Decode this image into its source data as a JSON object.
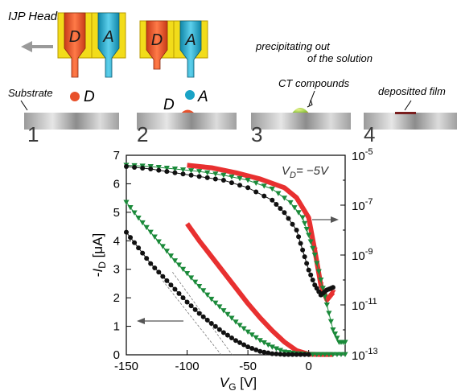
{
  "figure": {
    "labels": {
      "ijp_heads": "IJP Heads",
      "head_d": "D",
      "head_a": "A",
      "substrate": "Substrate",
      "drop_d": "D",
      "drop_a": "A",
      "precipitating_line1": "precipitating out",
      "precipitating_line2": "of the solution",
      "ct_compounds": "CT compounds",
      "deposited_film": "depositted film"
    },
    "step_numbers": [
      "1",
      "2",
      "3",
      "4"
    ],
    "colors": {
      "donor": "#e8512b",
      "acceptor": "#1aa3c6",
      "head_frame": "#f2dc1a",
      "ct_compound": "#8dc63f",
      "film": "#7a1f1f",
      "arrow_gray": "#9a9a9a"
    }
  },
  "chart_data": {
    "type": "line",
    "annotation": "V_D = -5V",
    "xlabel": "V_G [V]",
    "ylabel_left": "-I_D [μA]",
    "ylabel_right": "",
    "xlim": [
      -150,
      30
    ],
    "ylim_left": [
      0,
      7
    ],
    "ylim_right_log": [
      -13,
      -5
    ],
    "x_ticks": [
      "-150",
      "-100",
      "-50",
      "0"
    ],
    "y_ticks_left": [
      "0",
      "1",
      "2",
      "3",
      "4",
      "5",
      "6",
      "7"
    ],
    "y_ticks_right": [
      {
        "base": "10",
        "exp": "-13"
      },
      {
        "base": "10",
        "exp": "-11"
      },
      {
        "base": "10",
        "exp": "-9"
      },
      {
        "base": "10",
        "exp": "-7"
      },
      {
        "base": "10",
        "exp": "-5"
      }
    ],
    "series_colors": [
      "#e83030",
      "#1b8a3a",
      "#111111"
    ],
    "series": [
      {
        "name": "",
        "marker": "square",
        "axis": "left",
        "x": [
          -100,
          -90,
          -80,
          -70,
          -60,
          -50,
          -40,
          -30,
          -20,
          -10,
          0,
          10,
          20
        ],
        "values": [
          4.6,
          4.0,
          3.45,
          2.9,
          2.35,
          1.8,
          1.3,
          0.85,
          0.45,
          0.15,
          0.02,
          0.01,
          0.01
        ]
      },
      {
        "name": "",
        "marker": "triangle-down",
        "axis": "left",
        "x": [
          -150,
          -140,
          -130,
          -120,
          -110,
          -100,
          -90,
          -80,
          -70,
          -60,
          -50,
          -40,
          -30,
          -20,
          -10,
          0,
          10,
          20,
          30
        ],
        "values": [
          5.35,
          4.8,
          4.3,
          3.8,
          3.3,
          2.85,
          2.4,
          1.95,
          1.55,
          1.15,
          0.8,
          0.5,
          0.27,
          0.1,
          0.04,
          0.01,
          0.01,
          0.01,
          0.01
        ]
      },
      {
        "name": "",
        "marker": "circle",
        "axis": "left",
        "x": [
          -150,
          -140,
          -130,
          -120,
          -110,
          -100,
          -90,
          -80,
          -70,
          -60,
          -50,
          -40,
          -30,
          -20,
          -10,
          0
        ],
        "values": [
          4.3,
          3.75,
          3.2,
          2.75,
          2.3,
          1.85,
          1.45,
          1.1,
          0.78,
          0.5,
          0.28,
          0.12,
          0.04,
          0.01,
          0.01,
          0.01
        ]
      },
      {
        "name": "",
        "marker": "square",
        "axis": "right",
        "x": [
          -100,
          -80,
          -60,
          -40,
          -20,
          -10,
          0,
          5,
          10,
          15,
          20
        ],
        "values": [
          -5.4,
          -5.5,
          -5.7,
          -5.95,
          -6.3,
          -6.7,
          -7.5,
          -8.8,
          -10.2,
          -10.8,
          -10.5
        ]
      },
      {
        "name": "",
        "marker": "triangle-down",
        "axis": "right",
        "x": [
          -150,
          -130,
          -110,
          -90,
          -70,
          -50,
          -30,
          -15,
          -5,
          0,
          5,
          10,
          15,
          20,
          25,
          30
        ],
        "values": [
          -5.4,
          -5.45,
          -5.55,
          -5.65,
          -5.8,
          -6.0,
          -6.35,
          -6.9,
          -7.5,
          -8.2,
          -9.0,
          -10.0,
          -11.0,
          -12.0,
          -12.5,
          -12.5
        ]
      },
      {
        "name": "",
        "marker": "circle",
        "axis": "right",
        "x": [
          -150,
          -130,
          -110,
          -90,
          -70,
          -50,
          -30,
          -20,
          -10,
          -5,
          0,
          5,
          10,
          15,
          20
        ],
        "values": [
          -5.45,
          -5.55,
          -5.7,
          -5.85,
          -6.0,
          -6.3,
          -6.8,
          -7.3,
          -8.0,
          -8.8,
          -9.6,
          -10.2,
          -10.6,
          -10.4,
          -10.3
        ]
      }
    ]
  }
}
